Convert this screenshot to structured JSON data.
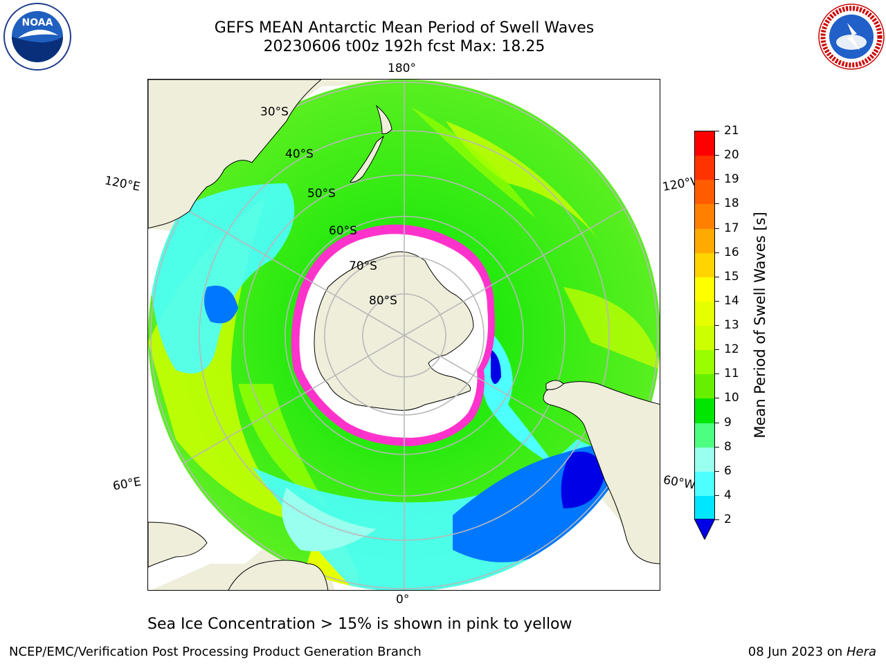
{
  "title": {
    "line1": "GEFS MEAN Antarctic Mean Period of Swell Waves",
    "line2": "20230606 t00z 192h fcst   Max: 18.25"
  },
  "map": {
    "projection": "south polar stereographic",
    "longitude_labels": {
      "top": "180°",
      "bottom": "0°",
      "left_upper": "120°E",
      "left_lower": "60°E",
      "right_upper": "120°W",
      "right_lower": "60°W"
    },
    "latitude_labels": [
      "30°S",
      "40°S",
      "50°S",
      "60°S",
      "70°S",
      "80°S"
    ],
    "colors": {
      "land": "#efeedb",
      "ice_shelf": "#ffffff",
      "sea_ice_edge": "#ff33cc",
      "gridline": "#b8b8b8"
    }
  },
  "colorbar": {
    "label": "Mean Period of Swell Waves [s]",
    "ticks": [
      "21",
      "20",
      "19",
      "18",
      "17",
      "16",
      "15",
      "14",
      "13",
      "12",
      "11",
      "10",
      "9",
      "8",
      "6",
      "4",
      "2"
    ],
    "colors": [
      "#ff0000",
      "#ff3300",
      "#ff5c00",
      "#ff8000",
      "#ffaa00",
      "#ffd400",
      "#ffff00",
      "#e6ff00",
      "#ccff00",
      "#99ff00",
      "#66f000",
      "#00e600",
      "#4dff80",
      "#99ffee",
      "#4dffff",
      "#00e6ff",
      "#0077ff",
      "#0000e6"
    ]
  },
  "caption": "Sea Ice Concentration > 15% is shown in pink to yellow",
  "footer": {
    "left": "NCEP/EMC/Verification Post Processing Product Generation Branch",
    "right_date": "08 Jun 2023 on",
    "right_host": "Hera"
  },
  "logos": {
    "left": "NOAA",
    "right": "NATIONAL WEATHER SERVICE"
  }
}
